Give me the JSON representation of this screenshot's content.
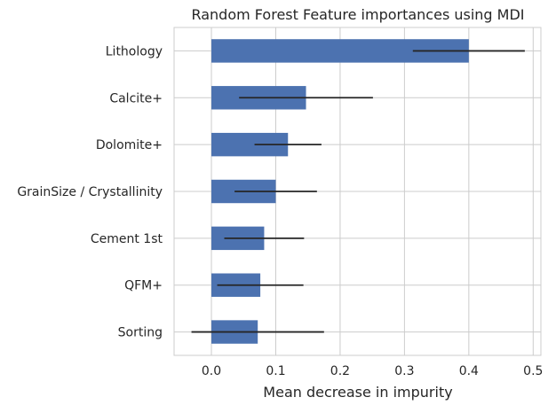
{
  "chart_data": {
    "type": "bar",
    "orientation": "horizontal",
    "title": "Random Forest Feature importances using MDI",
    "xlabel": "Mean decrease in impurity",
    "ylabel": "",
    "xlim": [
      -0.058,
      0.512
    ],
    "xticks": [
      0.0,
      0.1,
      0.2,
      0.3,
      0.4,
      0.5
    ],
    "xtick_labels": [
      "0.0",
      "0.1",
      "0.2",
      "0.3",
      "0.4",
      "0.5"
    ],
    "grid": true,
    "categories": [
      "Lithology",
      "Calcite+",
      "Dolomite+",
      "GrainSize / Crystallinity",
      "Cement 1st",
      "QFM+",
      "Sorting"
    ],
    "values": [
      0.4,
      0.147,
      0.119,
      0.1,
      0.082,
      0.076,
      0.072
    ],
    "errors": [
      0.087,
      0.104,
      0.052,
      0.064,
      0.062,
      0.067,
      0.103
    ],
    "bar_color": "#4c72b0",
    "error_color": "#262626",
    "grid_color": "#cccccc"
  }
}
